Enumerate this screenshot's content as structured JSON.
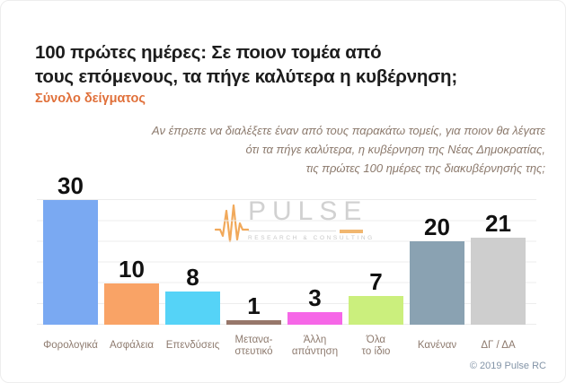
{
  "header": {
    "title_line1": "100 πρώτες ημέρες: Σε ποιον τομέα από",
    "title_line2": "τους επόμενους, τα πήγε καλύτερα η κυβέρνηση;",
    "subtitle": "Σύνολο δείγματος"
  },
  "question": {
    "lines": [
      "Αν έπρεπε να διαλέξετε έναν από τους παρακάτω τομείς, για ποιον θα λέγατε",
      "ότι τα πήγε καλύτερα, η κυβέρνηση της Νέας Δημοκρατίας,",
      "τις πρώτες 100 ημέρες της διακυβέρνησής της;"
    ]
  },
  "watermark": {
    "name": "PULSE",
    "tagline": "RESEARCH & CONSULTING",
    "icon": "pulse-waveform-icon",
    "icon_color": "#f0a04a",
    "text_color": "#cdcdcd"
  },
  "footer": {
    "copyright": "© 2019 Pulse RC"
  },
  "colors": {
    "title": "#1d1d1d",
    "subtitle_accent": "#e0703a",
    "question_text": "#8c7a6d",
    "category_labels": "#8e7b6f",
    "copyright": "#8394a7",
    "gridline": "#ececec"
  },
  "chart_data": {
    "type": "bar",
    "title": "100 πρώτες ημέρες: Σε ποιον τομέα από τους επόμενους, τα πήγε καλύτερα η κυβέρνηση;",
    "subtitle": "Σύνολο δείγματος",
    "categories": [
      "Φορολογικά",
      "Ασφάλεια",
      "Επενδύσεις",
      "Μετανα-\nστευτικό",
      "Άλλη\nαπάντηση",
      "Όλα\nτο ίδιο",
      "Κανέναν",
      "ΔΓ / ΔΑ"
    ],
    "values": [
      30,
      10,
      8,
      1,
      3,
      7,
      20,
      21
    ],
    "bar_colors": [
      "#7aa9f2",
      "#f9a366",
      "#55d3f7",
      "#97776a",
      "#f667e7",
      "#cbef7d",
      "#8aa2b2",
      "#cecece"
    ],
    "value_labels": true,
    "xlabel": "",
    "ylabel": "",
    "ylim": [
      0,
      35
    ],
    "grid": "horizontal",
    "legend": "none"
  }
}
